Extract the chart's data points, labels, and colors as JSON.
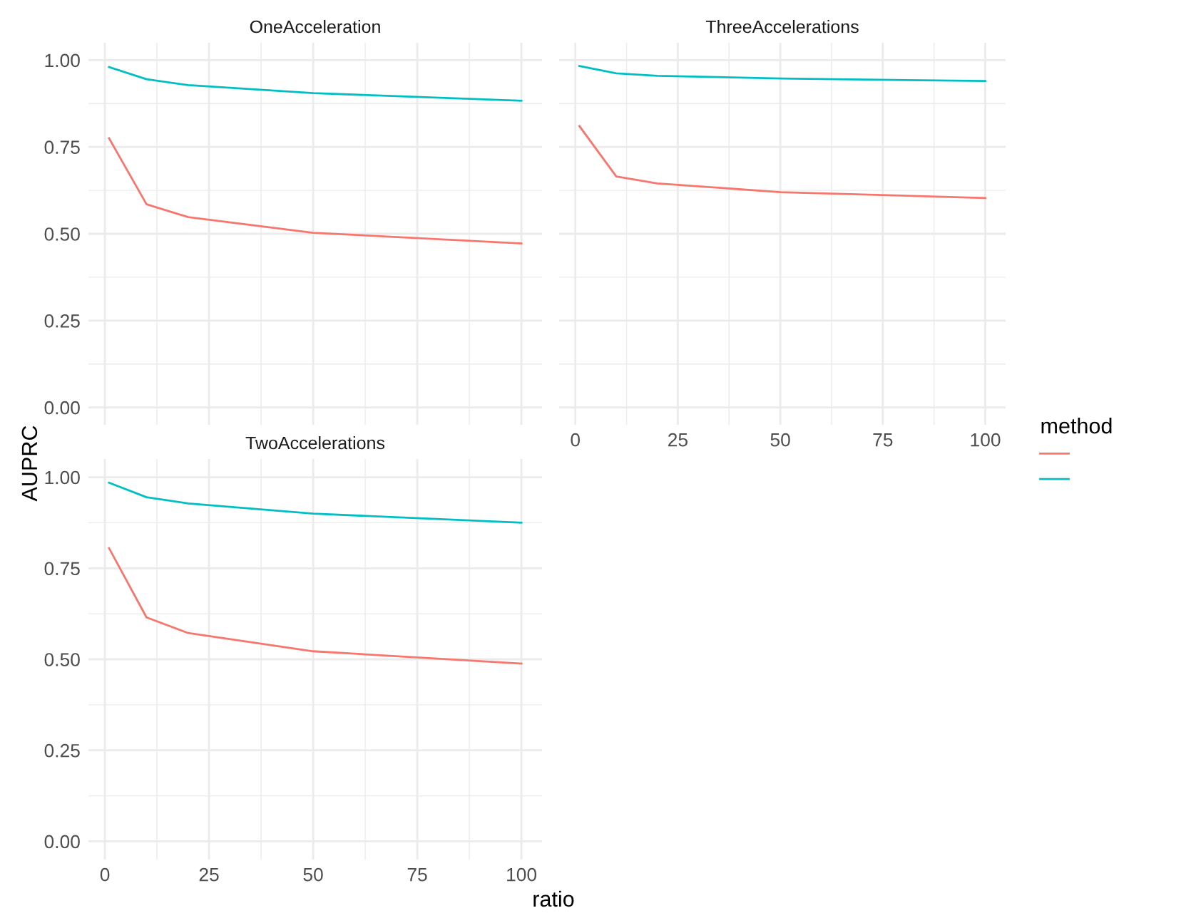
{
  "chart_data": [
    {
      "type": "line",
      "title": "OneAcceleration",
      "x": [
        1,
        10,
        20,
        50,
        100
      ],
      "xlim": [
        -3.95,
        104.95
      ],
      "xticks": [
        {
          "value": 0,
          "label": null
        },
        {
          "value": 25,
          "label": null
        },
        {
          "value": 50,
          "label": null
        },
        {
          "value": 75,
          "label": null
        },
        {
          "value": 100,
          "label": null
        }
      ],
      "ylim": [
        -0.05,
        1.05
      ],
      "yticks": [
        {
          "value": 0,
          "label": "0.00"
        },
        {
          "value": 0.25,
          "label": "0.25"
        },
        {
          "value": 0.5,
          "label": "0.50"
        },
        {
          "value": 0.75,
          "label": "0.75"
        },
        {
          "value": 1,
          "label": "1.00"
        }
      ],
      "tick_labels": "y",
      "grid": true,
      "legend_title": "method",
      "series": [
        {
          "color": "#f8766d",
          "values": [
            0.775,
            0.585,
            0.548,
            0.503,
            0.472
          ]
        },
        {
          "color": "#00bfc4",
          "values": [
            0.98,
            0.945,
            0.928,
            0.905,
            0.883
          ]
        }
      ]
    },
    {
      "type": "line",
      "title": "ThreeAccelerations",
      "x": [
        1,
        10,
        20,
        50,
        100
      ],
      "xlim": [
        -3.95,
        104.95
      ],
      "xticks": [
        0,
        25,
        50,
        75,
        100
      ],
      "ylim": [
        -0.05,
        1.05
      ],
      "yticks": [
        {
          "value": 0,
          "label": null
        },
        {
          "value": 0.25,
          "label": null
        },
        {
          "value": 0.5,
          "label": null
        },
        {
          "value": 0.75,
          "label": null
        },
        {
          "value": 1,
          "label": null
        }
      ],
      "tick_labels": "x",
      "grid": true,
      "series": [
        {
          "color": "#f8766d",
          "values": [
            0.81,
            0.665,
            0.645,
            0.62,
            0.603
          ]
        },
        {
          "color": "#00bfc4",
          "values": [
            0.983,
            0.962,
            0.955,
            0.947,
            0.94
          ]
        }
      ]
    },
    {
      "type": "line",
      "title": "TwoAccelerations",
      "xlabel": "ratio",
      "ylabel": "AUPRC",
      "x": [
        1,
        10,
        20,
        50,
        100
      ],
      "xlim": [
        -3.95,
        104.95
      ],
      "xticks": [
        0,
        25,
        50,
        75,
        100
      ],
      "ylim": [
        -0.05,
        1.05
      ],
      "yticks": [
        {
          "value": 0,
          "label": "0.00"
        },
        {
          "value": 0.25,
          "label": "0.25"
        },
        {
          "value": 0.5,
          "label": "0.50"
        },
        {
          "value": 0.75,
          "label": "0.75"
        },
        {
          "value": 1,
          "label": "1.00"
        }
      ],
      "grid": true,
      "series": [
        {
          "color": "#f8766d",
          "values": [
            0.805,
            0.615,
            0.572,
            0.522,
            0.488
          ]
        },
        {
          "color": "#00bfc4",
          "values": [
            0.985,
            0.945,
            0.928,
            0.9,
            0.875
          ]
        }
      ]
    }
  ]
}
